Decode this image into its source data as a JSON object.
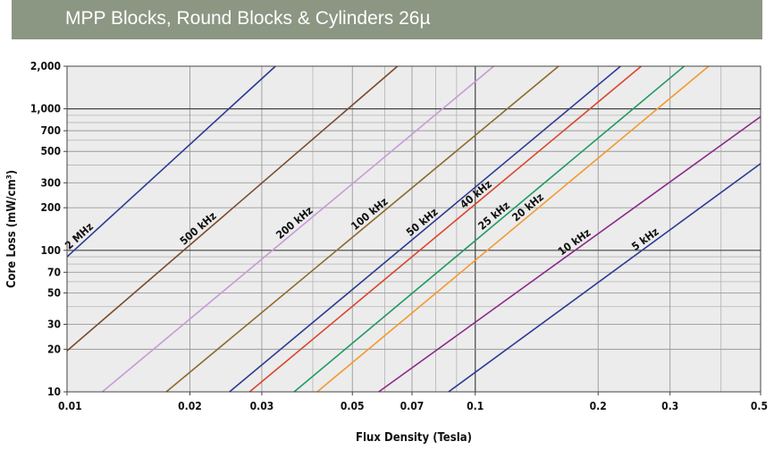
{
  "header": {
    "title": "MPP Blocks, Round Blocks & Cylinders 26µ"
  },
  "chart_data": {
    "type": "line",
    "title": "MPP Blocks, Round Blocks & Cylinders 26µ",
    "xlabel": "Flux Density (Tesla)",
    "ylabel": "Core Loss (mW/cm³)",
    "xscale": "log",
    "yscale": "log",
    "xlim": [
      0.01,
      0.5
    ],
    "ylim": [
      10,
      2000
    ],
    "grid": true,
    "x_ticks": [
      {
        "v": 0.01,
        "label": "0.01"
      },
      {
        "v": 0.02,
        "label": "0.02"
      },
      {
        "v": 0.03,
        "label": "0.03"
      },
      {
        "v": 0.05,
        "label": "0.05"
      },
      {
        "v": 0.07,
        "label": "0.07"
      },
      {
        "v": 0.1,
        "label": "0.1"
      },
      {
        "v": 0.2,
        "label": "0.2"
      },
      {
        "v": 0.3,
        "label": "0.3"
      },
      {
        "v": 0.5,
        "label": "0.5"
      }
    ],
    "y_ticks": [
      {
        "v": 10,
        "label": "10"
      },
      {
        "v": 20,
        "label": "20"
      },
      {
        "v": 30,
        "label": "30"
      },
      {
        "v": 50,
        "label": "50"
      },
      {
        "v": 70,
        "label": "70"
      },
      {
        "v": 100,
        "label": "100"
      },
      {
        "v": 200,
        "label": "200"
      },
      {
        "v": 300,
        "label": "300"
      },
      {
        "v": 500,
        "label": "500"
      },
      {
        "v": 700,
        "label": "700"
      },
      {
        "v": 1000,
        "label": "1,000"
      },
      {
        "v": 2000,
        "label": "2,000"
      }
    ],
    "series": [
      {
        "name": "2 MHz",
        "color": "#2e3a94",
        "x": [
          0.01,
          0.0324
        ],
        "y": [
          90,
          2000
        ],
        "label_at": 0.011
      },
      {
        "name": "500 kHz",
        "color": "#7a4a2a",
        "x": [
          0.01,
          0.0645
        ],
        "y": [
          19.5,
          2000
        ],
        "label_at": 0.0215
      },
      {
        "name": "200 kHz",
        "color": "#c89ad6",
        "x": [
          0.0122,
          0.111
        ],
        "y": [
          10,
          2000
        ],
        "label_at": 0.037
      },
      {
        "name": "100 kHz",
        "color": "#8c6a2a",
        "x": [
          0.0175,
          0.16
        ],
        "y": [
          10,
          2000
        ],
        "label_at": 0.0565
      },
      {
        "name": "50 kHz",
        "color": "#2e3a94",
        "x": [
          0.025,
          0.227
        ],
        "y": [
          10,
          2000
        ],
        "label_at": 0.076
      },
      {
        "name": "40 kHz",
        "color": "#d9472b",
        "x": [
          0.028,
          0.255
        ],
        "y": [
          10,
          2000
        ],
        "label_at": 0.103
      },
      {
        "name": "25 kHz",
        "color": "#1e9a64",
        "x": [
          0.036,
          0.325
        ],
        "y": [
          10,
          2000
        ],
        "label_at": 0.114
      },
      {
        "name": "20 kHz",
        "color": "#f39a2e",
        "x": [
          0.041,
          0.373
        ],
        "y": [
          10,
          2000
        ],
        "label_at": 0.138
      },
      {
        "name": "10 kHz",
        "color": "#8a2a8a",
        "x": [
          0.058,
          0.5
        ],
        "y": [
          10,
          880
        ],
        "label_at": 0.179
      },
      {
        "name": "5 kHz",
        "color": "#2e3a94",
        "x": [
          0.086,
          0.5
        ],
        "y": [
          10,
          410
        ],
        "label_at": 0.267
      }
    ]
  }
}
